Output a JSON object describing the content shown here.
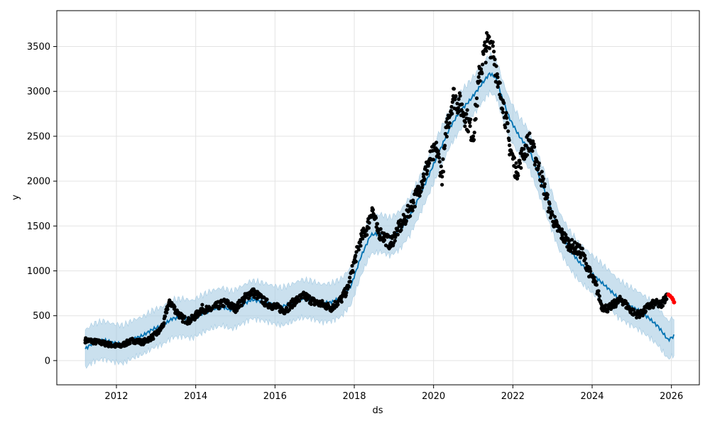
{
  "chart_data": {
    "type": "line",
    "xlabel": "ds",
    "ylabel": "y",
    "xlim": [
      "2010-07-01",
      "2026-09-15"
    ],
    "ylim": [
      -270,
      3900
    ],
    "x_ticks": [
      "2012",
      "2014",
      "2016",
      "2018",
      "2020",
      "2022",
      "2024",
      "2026"
    ],
    "y_ticks": [
      0,
      500,
      1000,
      1500,
      2000,
      2500,
      3000,
      3500
    ],
    "grid": true,
    "colors": {
      "observed": "#000000",
      "forecast_line": "#0072b2",
      "uncertainty_band": "#a6cbe3",
      "recent_points": "#ff0000"
    },
    "series": [
      {
        "kind": "observed-points",
        "points": [
          [
            "2011-03-20",
            228
          ],
          [
            "2011-06-01",
            215
          ],
          [
            "2011-09-01",
            195
          ],
          [
            "2011-12-01",
            170
          ],
          [
            "2012-02-01",
            160
          ],
          [
            "2012-04-01",
            195
          ],
          [
            "2012-06-01",
            225
          ],
          [
            "2012-09-01",
            205
          ],
          [
            "2012-12-01",
            265
          ],
          [
            "2013-02-01",
            330
          ],
          [
            "2013-03-15",
            420
          ],
          [
            "2013-04-15",
            600
          ],
          [
            "2013-05-15",
            650
          ],
          [
            "2013-07-01",
            560
          ],
          [
            "2013-09-01",
            470
          ],
          [
            "2013-11-01",
            440
          ],
          [
            "2014-01-01",
            500
          ],
          [
            "2014-03-01",
            580
          ],
          [
            "2014-05-01",
            560
          ],
          [
            "2014-07-01",
            600
          ],
          [
            "2014-10-01",
            650
          ],
          [
            "2015-01-01",
            580
          ],
          [
            "2015-04-01",
            700
          ],
          [
            "2015-06-01",
            770
          ],
          [
            "2015-08-01",
            720
          ],
          [
            "2015-10-01",
            650
          ],
          [
            "2016-01-01",
            600
          ],
          [
            "2016-04-01",
            560
          ],
          [
            "2016-07-01",
            660
          ],
          [
            "2016-10-01",
            720
          ],
          [
            "2017-01-01",
            650
          ],
          [
            "2017-04-01",
            620
          ],
          [
            "2017-06-01",
            590
          ],
          [
            "2017-09-01",
            680
          ],
          [
            "2017-11-01",
            800
          ],
          [
            "2018-01-01",
            1100
          ],
          [
            "2018-03-01",
            1350
          ],
          [
            "2018-05-01",
            1480
          ],
          [
            "2018-06-15",
            1700
          ],
          [
            "2018-08-01",
            1450
          ],
          [
            "2018-10-01",
            1380
          ],
          [
            "2018-12-01",
            1300
          ],
          [
            "2019-02-01",
            1450
          ],
          [
            "2019-04-01",
            1550
          ],
          [
            "2019-06-01",
            1700
          ],
          [
            "2019-08-01",
            1850
          ],
          [
            "2019-10-01",
            2050
          ],
          [
            "2019-12-01",
            2250
          ],
          [
            "2020-02-01",
            2350
          ],
          [
            "2020-03-20",
            2050
          ],
          [
            "2020-05-01",
            2600
          ],
          [
            "2020-07-01",
            2950
          ],
          [
            "2020-09-01",
            2850
          ],
          [
            "2020-11-01",
            2700
          ],
          [
            "2021-01-01",
            2500
          ],
          [
            "2021-03-01",
            3200
          ],
          [
            "2021-05-01",
            3500
          ],
          [
            "2021-07-01",
            3550
          ],
          [
            "2021-08-15",
            3050
          ],
          [
            "2021-10-01",
            2900
          ],
          [
            "2021-12-01",
            2400
          ],
          [
            "2022-02-01",
            2100
          ],
          [
            "2022-04-01",
            2300
          ],
          [
            "2022-06-01",
            2450
          ],
          [
            "2022-08-01",
            2250
          ],
          [
            "2022-10-01",
            2000
          ],
          [
            "2022-12-01",
            1700
          ],
          [
            "2023-02-01",
            1500
          ],
          [
            "2023-04-01",
            1400
          ],
          [
            "2023-06-01",
            1300
          ],
          [
            "2023-08-01",
            1250
          ],
          [
            "2023-10-01",
            1200
          ],
          [
            "2023-12-01",
            1000
          ],
          [
            "2024-02-01",
            850
          ],
          [
            "2024-04-01",
            600
          ],
          [
            "2024-06-01",
            580
          ],
          [
            "2024-08-01",
            640
          ],
          [
            "2024-10-01",
            680
          ],
          [
            "2024-12-01",
            590
          ],
          [
            "2025-02-01",
            520
          ],
          [
            "2025-04-01",
            520
          ],
          [
            "2025-06-01",
            600
          ],
          [
            "2025-08-01",
            640
          ],
          [
            "2025-10-01",
            620
          ],
          [
            "2025-11-20",
            740
          ]
        ]
      },
      {
        "kind": "recent-points",
        "points": [
          [
            "2025-12-05",
            735
          ],
          [
            "2025-12-20",
            720
          ],
          [
            "2026-01-05",
            700
          ],
          [
            "2026-01-15",
            680
          ],
          [
            "2026-01-25",
            650
          ]
        ]
      },
      {
        "kind": "forecast-line",
        "points": [
          [
            "2011-03-20",
            130
          ],
          [
            "2011-06-01",
            200
          ],
          [
            "2011-09-01",
            230
          ],
          [
            "2011-12-01",
            200
          ],
          [
            "2012-03-01",
            180
          ],
          [
            "2012-06-01",
            240
          ],
          [
            "2012-09-01",
            280
          ],
          [
            "2012-12-01",
            350
          ],
          [
            "2013-03-01",
            390
          ],
          [
            "2013-06-01",
            470
          ],
          [
            "2013-09-01",
            480
          ],
          [
            "2013-12-01",
            460
          ],
          [
            "2014-03-01",
            520
          ],
          [
            "2014-06-01",
            570
          ],
          [
            "2014-09-01",
            600
          ],
          [
            "2014-12-01",
            560
          ],
          [
            "2015-03-01",
            620
          ],
          [
            "2015-06-01",
            680
          ],
          [
            "2015-09-01",
            660
          ],
          [
            "2015-12-01",
            630
          ],
          [
            "2016-03-01",
            600
          ],
          [
            "2016-06-01",
            640
          ],
          [
            "2016-09-01",
            690
          ],
          [
            "2016-12-01",
            680
          ],
          [
            "2017-03-01",
            640
          ],
          [
            "2017-06-01",
            650
          ],
          [
            "2017-09-01",
            700
          ],
          [
            "2017-12-01",
            830
          ],
          [
            "2018-03-01",
            1150
          ],
          [
            "2018-06-01",
            1400
          ],
          [
            "2018-09-01",
            1420
          ],
          [
            "2018-12-01",
            1380
          ],
          [
            "2019-03-01",
            1460
          ],
          [
            "2019-06-01",
            1620
          ],
          [
            "2019-09-01",
            1850
          ],
          [
            "2019-12-01",
            2100
          ],
          [
            "2020-03-01",
            2350
          ],
          [
            "2020-06-01",
            2600
          ],
          [
            "2020-09-01",
            2780
          ],
          [
            "2020-12-01",
            2900
          ],
          [
            "2021-03-01",
            3050
          ],
          [
            "2021-06-01",
            3200
          ],
          [
            "2021-08-01",
            3150
          ],
          [
            "2021-10-01",
            2900
          ],
          [
            "2021-12-01",
            2700
          ],
          [
            "2022-03-01",
            2500
          ],
          [
            "2022-06-01",
            2350
          ],
          [
            "2022-09-01",
            2050
          ],
          [
            "2022-12-01",
            1750
          ],
          [
            "2023-03-01",
            1450
          ],
          [
            "2023-06-01",
            1250
          ],
          [
            "2023-09-01",
            1100
          ],
          [
            "2023-12-01",
            1000
          ],
          [
            "2024-03-01",
            900
          ],
          [
            "2024-06-01",
            800
          ],
          [
            "2024-09-01",
            690
          ],
          [
            "2024-12-01",
            620
          ],
          [
            "2025-03-01",
            560
          ],
          [
            "2025-06-01",
            480
          ],
          [
            "2025-09-01",
            380
          ],
          [
            "2025-12-01",
            230
          ],
          [
            "2026-02-01",
            280
          ]
        ]
      },
      {
        "kind": "uncertainty-band-half-width",
        "value": 210
      }
    ]
  }
}
